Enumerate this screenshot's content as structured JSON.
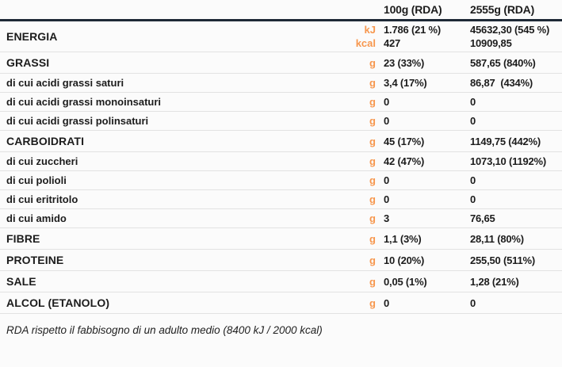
{
  "colors": {
    "accent_orange": "#F7974E",
    "header_rule": "#1E2936",
    "text": "#1C1C1C",
    "row_separator": "#E2E2E2",
    "background": "#FBFBFB"
  },
  "header": {
    "col_100g": "100g (RDA)",
    "col_2555g": "2555g (RDA)"
  },
  "rows": [
    {
      "label": "ENERGIA",
      "units": [
        "kJ",
        "kcal"
      ],
      "per100g": [
        "1.786 (21 %)",
        "427"
      ],
      "per2555g": [
        "45632,30 (545 %)",
        "10909,85"
      ]
    },
    {
      "label": "GRASSI",
      "unit": "g",
      "per100g": "23 (33%)",
      "per2555g": "587,65 (840%)"
    },
    {
      "label": "di cui acidi grassi saturi",
      "unit": "g",
      "per100g": "3,4 (17%)",
      "per2555g": "86,87  (434%)"
    },
    {
      "label": "di cui acidi grassi monoinsaturi",
      "unit": "g",
      "per100g": "0",
      "per2555g": "0"
    },
    {
      "label": "di cui acidi grassi polinsaturi",
      "unit": "g",
      "per100g": "0",
      "per2555g": "0"
    },
    {
      "label": "CARBOIDRATI",
      "unit": "g",
      "per100g": "45 (17%)",
      "per2555g": "1149,75 (442%)"
    },
    {
      "label": "di cui zuccheri",
      "unit": "g",
      "per100g": "42 (47%)",
      "per2555g": "1073,10 (1192%)"
    },
    {
      "label": "di cui polioli",
      "unit": "g",
      "per100g": "0",
      "per2555g": "0"
    },
    {
      "label": "di cui eritritolo",
      "unit": "g",
      "per100g": "0",
      "per2555g": "0"
    },
    {
      "label": "di cui amido",
      "unit": "g",
      "per100g": "3",
      "per2555g": "76,65"
    },
    {
      "label": "FIBRE",
      "unit": "g",
      "per100g": "1,1 (3%)",
      "per2555g": "28,11 (80%)"
    },
    {
      "label": "PROTEINE",
      "unit": "g",
      "per100g": "10 (20%)",
      "per2555g": "255,50 (511%)"
    },
    {
      "label": "SALE",
      "unit": "g",
      "per100g": "0,05 (1%)",
      "per2555g": "1,28 (21%)"
    },
    {
      "label": "ALCOL (ETANOLO)",
      "unit": "g",
      "per100g": "0",
      "per2555g": "0"
    }
  ],
  "footnote": "RDA rispetto il fabbisogno di un adulto medio (8400 kJ / 2000 kcal)"
}
